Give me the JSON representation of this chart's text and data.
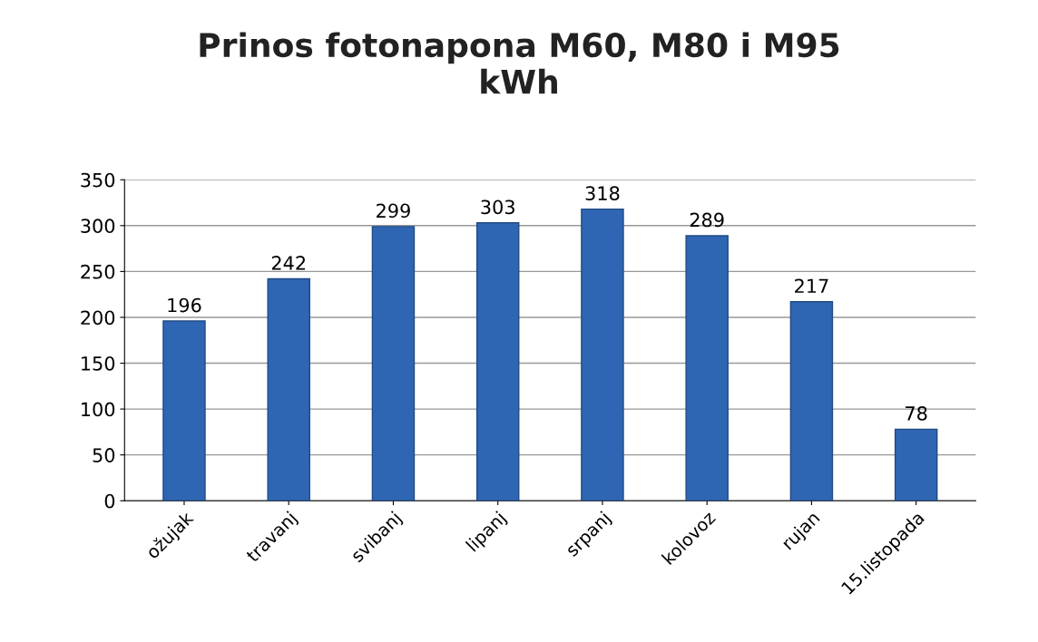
{
  "chart_data": {
    "type": "bar",
    "title": "Prinos fotonapona M60, M80 i M95\nkWh",
    "categories": [
      "ožujak",
      "travanj",
      "svibanj",
      "lipanj",
      "srpanj",
      "kolovoz",
      "rujan",
      "15.listopada"
    ],
    "values": [
      196,
      242,
      299,
      303,
      318,
      289,
      217,
      78
    ],
    "color": "#2f66b3",
    "ylim": [
      0,
      350
    ],
    "yticks": [
      0,
      50,
      100,
      150,
      200,
      250,
      300,
      350
    ],
    "grid": "y",
    "data_labels": true,
    "legend": false
  }
}
